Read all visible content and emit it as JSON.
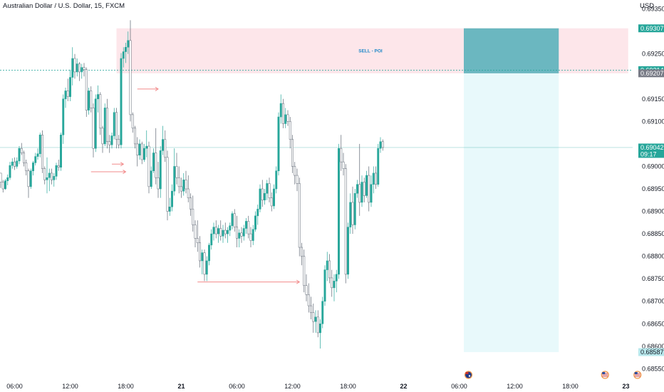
{
  "header": {
    "title": "Australian Dollar / U.S. Dollar, 15, FXCM",
    "currency": "USD"
  },
  "colors": {
    "up": "#26a69a",
    "down": "#5e6673",
    "zone_fill": "#fde6ea",
    "position_fill": "#6bb7c0",
    "target_fill": "#e8f9fb",
    "arrow": "#f28b8b",
    "current_tag": "#26a69a",
    "grey_tag": "#787b86",
    "light_tag": "#b8e8ec"
  },
  "chart_data": {
    "type": "candlestick",
    "symbol": "Australian Dollar / U.S. Dollar, 15, FXCM",
    "y_axis": {
      "range": [
        0.6853,
        0.6937
      ],
      "ticks": [
        {
          "v": 0.6935,
          "label": "0.69350"
        },
        {
          "v": 0.6925,
          "label": "0.69250"
        },
        {
          "v": 0.6915,
          "label": "0.69150"
        },
        {
          "v": 0.691,
          "label": "0.69100"
        },
        {
          "v": 0.69,
          "label": "0.69000"
        },
        {
          "v": 0.6895,
          "label": "0.68950"
        },
        {
          "v": 0.689,
          "label": "0.68900"
        },
        {
          "v": 0.6885,
          "label": "0.68850"
        },
        {
          "v": 0.688,
          "label": "0.68800"
        },
        {
          "v": 0.6875,
          "label": "0.68750"
        },
        {
          "v": 0.687,
          "label": "0.68700"
        },
        {
          "v": 0.6865,
          "label": "0.68650"
        },
        {
          "v": 0.686,
          "label": "0.68600"
        },
        {
          "v": 0.6855,
          "label": "0.68550"
        }
      ]
    },
    "x_axis": {
      "ticks": [
        {
          "bar": 6,
          "label": "06:00",
          "bold": false
        },
        {
          "bar": 30,
          "label": "12:00",
          "bold": false
        },
        {
          "bar": 54,
          "label": "18:00",
          "bold": false
        },
        {
          "bar": 78,
          "label": "21",
          "bold": true
        },
        {
          "bar": 102,
          "label": "06:00",
          "bold": false
        },
        {
          "bar": 126,
          "label": "12:00",
          "bold": false
        },
        {
          "bar": 150,
          "label": "18:00",
          "bold": false
        },
        {
          "bar": 174,
          "label": "22",
          "bold": true
        },
        {
          "bar": 198,
          "label": "06:00",
          "bold": false
        },
        {
          "bar": 222,
          "label": "12:00",
          "bold": false
        },
        {
          "bar": 246,
          "label": "18:00",
          "bold": false
        },
        {
          "bar": 270,
          "label": "23",
          "bold": true
        }
      ]
    },
    "price_tags": [
      {
        "v": 0.69307,
        "label": "0.69307",
        "style": "current_tag"
      },
      {
        "v": 0.69214,
        "label": "0.69214",
        "style": "current_tag"
      },
      {
        "v": 0.69207,
        "label": "0.69207",
        "style": "grey_tag"
      },
      {
        "v": 0.69042,
        "label": "0.69042",
        "sub": "09:17",
        "style": "current_tag"
      },
      {
        "v": 0.68587,
        "label": "0.68587",
        "style": "light_tag"
      }
    ],
    "zone": {
      "label": "SELL - POI",
      "top": 0.69307,
      "bottom": 0.69207,
      "start_bar": 50,
      "end_bar": 271
    },
    "position": {
      "top": 0.69307,
      "entry": 0.69207,
      "stop": 0.68587,
      "start_bar": 200,
      "end_bar": 241
    },
    "horizontal_lines": [
      {
        "v": 0.69214,
        "style": "dashed"
      },
      {
        "v": 0.69042,
        "style": "solid"
      }
    ],
    "arrows": [
      {
        "bar_from": 59,
        "bar_to": 68,
        "v": 0.69172
      },
      {
        "bar_from": 48,
        "bar_to": 53,
        "v": 0.69005
      },
      {
        "bar_from": 39,
        "bar_to": 54,
        "v": 0.68988
      },
      {
        "bar_from": 85,
        "bar_to": 129,
        "v": 0.68743
      }
    ],
    "events": [
      {
        "bar": 202,
        "type": "au-flag-icon"
      },
      {
        "bar": 261,
        "type": "us-flag-icon"
      },
      {
        "bar": 275,
        "type": "us-flag-icon"
      }
    ],
    "candles": [
      [
        0.68985,
        0.68985,
        0.68952,
        0.68965
      ],
      [
        0.68965,
        0.6897,
        0.68942,
        0.6895
      ],
      [
        0.6895,
        0.68972,
        0.68948,
        0.68968
      ],
      [
        0.68968,
        0.68982,
        0.68958,
        0.68975
      ],
      [
        0.68975,
        0.6901,
        0.6897,
        0.69002
      ],
      [
        0.69002,
        0.69018,
        0.68995,
        0.6901
      ],
      [
        0.6901,
        0.6902,
        0.68992,
        0.69
      ],
      [
        0.69,
        0.6902,
        0.68995,
        0.69012
      ],
      [
        0.69012,
        0.69045,
        0.69005,
        0.6904
      ],
      [
        0.6904,
        0.69052,
        0.69025,
        0.6903
      ],
      [
        0.6903,
        0.69035,
        0.69,
        0.69008
      ],
      [
        0.69008,
        0.69015,
        0.6898,
        0.6899
      ],
      [
        0.6899,
        0.68995,
        0.6893,
        0.68955
      ],
      [
        0.68955,
        0.68995,
        0.6895,
        0.6899
      ],
      [
        0.6899,
        0.69012,
        0.6898,
        0.69008
      ],
      [
        0.69008,
        0.6903,
        0.69002,
        0.69022
      ],
      [
        0.69022,
        0.6904,
        0.69015,
        0.69028
      ],
      [
        0.69028,
        0.69075,
        0.6902,
        0.6907
      ],
      [
        0.6907,
        0.6908,
        0.68985,
        0.68995
      ],
      [
        0.68995,
        0.69,
        0.6896,
        0.6897
      ],
      [
        0.6897,
        0.6902,
        0.6894,
        0.68975
      ],
      [
        0.68975,
        0.68995,
        0.68945,
        0.68985
      ],
      [
        0.68985,
        0.68995,
        0.6896,
        0.6897
      ],
      [
        0.6897,
        0.68985,
        0.68955,
        0.68978
      ],
      [
        0.68978,
        0.69008,
        0.6897,
        0.69002
      ],
      [
        0.69002,
        0.69015,
        0.6899,
        0.68998
      ],
      [
        0.68998,
        0.69075,
        0.6899,
        0.6907
      ],
      [
        0.6907,
        0.6916,
        0.6905,
        0.6915
      ],
      [
        0.6915,
        0.69175,
        0.6913,
        0.69168
      ],
      [
        0.69168,
        0.69195,
        0.69145,
        0.69155
      ],
      [
        0.69155,
        0.69215,
        0.69145,
        0.69198
      ],
      [
        0.69198,
        0.69265,
        0.6918,
        0.6924
      ],
      [
        0.6924,
        0.6925,
        0.69195,
        0.6921
      ],
      [
        0.6921,
        0.6924,
        0.692,
        0.69228
      ],
      [
        0.69228,
        0.69232,
        0.6919,
        0.6921
      ],
      [
        0.6921,
        0.69228,
        0.69195,
        0.6922
      ],
      [
        0.6922,
        0.6923,
        0.692,
        0.69215
      ],
      [
        0.69215,
        0.6922,
        0.6911,
        0.69125
      ],
      [
        0.69125,
        0.69175,
        0.69115,
        0.69168
      ],
      [
        0.69168,
        0.69178,
        0.6912,
        0.6913
      ],
      [
        0.6913,
        0.6914,
        0.6902,
        0.6904
      ],
      [
        0.6904,
        0.6916,
        0.69032,
        0.6915
      ],
      [
        0.6915,
        0.6918,
        0.6912,
        0.6916
      ],
      [
        0.6916,
        0.69165,
        0.6907,
        0.69085
      ],
      [
        0.69085,
        0.6909,
        0.6903,
        0.6905
      ],
      [
        0.6905,
        0.6914,
        0.69045,
        0.6913
      ],
      [
        0.6913,
        0.6915,
        0.6904,
        0.69055
      ],
      [
        0.69055,
        0.6907,
        0.6903,
        0.69048
      ],
      [
        0.69048,
        0.69075,
        0.6904,
        0.69068
      ],
      [
        0.69068,
        0.6913,
        0.6906,
        0.6912
      ],
      [
        0.6912,
        0.6913,
        0.6904,
        0.6906
      ],
      [
        0.6906,
        0.6907,
        0.6904,
        0.69048
      ],
      [
        0.69048,
        0.69252,
        0.6904,
        0.6924
      ],
      [
        0.6924,
        0.69265,
        0.6922,
        0.69255
      ],
      [
        0.69255,
        0.69275,
        0.6923,
        0.69265
      ],
      [
        0.69265,
        0.693,
        0.6925,
        0.6928
      ],
      [
        0.6928,
        0.69325,
        0.691,
        0.69115
      ],
      [
        0.69115,
        0.6912,
        0.69075,
        0.69085
      ],
      [
        0.69085,
        0.6909,
        0.6904,
        0.6905
      ],
      [
        0.6905,
        0.69065,
        0.69,
        0.69025
      ],
      [
        0.69025,
        0.6906,
        0.69015,
        0.6905
      ],
      [
        0.6905,
        0.69055,
        0.69005,
        0.69015
      ],
      [
        0.69015,
        0.6905,
        0.6901,
        0.6904
      ],
      [
        0.6904,
        0.6908,
        0.6902,
        0.69045
      ],
      [
        0.69045,
        0.69055,
        0.6894,
        0.68955
      ],
      [
        0.68955,
        0.69,
        0.6895,
        0.6899
      ],
      [
        0.6899,
        0.6904,
        0.68985,
        0.6903
      ],
      [
        0.6903,
        0.69085,
        0.6896,
        0.68975
      ],
      [
        0.68975,
        0.6901,
        0.6893,
        0.6895
      ],
      [
        0.6895,
        0.69045,
        0.6893,
        0.69035
      ],
      [
        0.69035,
        0.6909,
        0.69025,
        0.6906
      ],
      [
        0.6906,
        0.6908,
        0.6901,
        0.6902
      ],
      [
        0.6902,
        0.69035,
        0.6888,
        0.689
      ],
      [
        0.689,
        0.6893,
        0.6889,
        0.6891
      ],
      [
        0.6891,
        0.6896,
        0.689,
        0.68945
      ],
      [
        0.68945,
        0.6904,
        0.68935,
        0.69
      ],
      [
        0.69,
        0.6903,
        0.6896,
        0.68975
      ],
      [
        0.68975,
        0.69,
        0.6894,
        0.68955
      ],
      [
        0.68955,
        0.68975,
        0.6893,
        0.68945
      ],
      [
        0.68945,
        0.68985,
        0.68935,
        0.6897
      ],
      [
        0.6897,
        0.6899,
        0.6894,
        0.6895
      ],
      [
        0.6895,
        0.6898,
        0.6892,
        0.6893
      ],
      [
        0.6893,
        0.6894,
        0.6889,
        0.68905
      ],
      [
        0.68905,
        0.68935,
        0.68855,
        0.6887
      ],
      [
        0.6887,
        0.6888,
        0.6882,
        0.6884
      ],
      [
        0.6884,
        0.6888,
        0.6881,
        0.6883
      ],
      [
        0.6883,
        0.68845,
        0.68775,
        0.6879
      ],
      [
        0.6879,
        0.68815,
        0.6876,
        0.68808
      ],
      [
        0.68808,
        0.68815,
        0.68745,
        0.6876
      ],
      [
        0.6876,
        0.688,
        0.68745,
        0.6879
      ],
      [
        0.6879,
        0.6883,
        0.6878,
        0.68825
      ],
      [
        0.68825,
        0.6886,
        0.68815,
        0.6885
      ],
      [
        0.6885,
        0.68875,
        0.68835,
        0.68865
      ],
      [
        0.68865,
        0.6888,
        0.6884,
        0.6885
      ],
      [
        0.6885,
        0.6887,
        0.6883,
        0.68862
      ],
      [
        0.68862,
        0.6888,
        0.68835,
        0.68845
      ],
      [
        0.68845,
        0.6887,
        0.6883,
        0.68858
      ],
      [
        0.68858,
        0.68875,
        0.6884,
        0.6885
      ],
      [
        0.6885,
        0.68865,
        0.6883,
        0.68858
      ],
      [
        0.68858,
        0.68875,
        0.68845,
        0.68868
      ],
      [
        0.68868,
        0.689,
        0.6886,
        0.68895
      ],
      [
        0.68895,
        0.68905,
        0.68855,
        0.68865
      ],
      [
        0.68865,
        0.6889,
        0.6882,
        0.6884
      ],
      [
        0.6884,
        0.6886,
        0.6882,
        0.68852
      ],
      [
        0.68852,
        0.68865,
        0.6883,
        0.68845
      ],
      [
        0.68845,
        0.6887,
        0.68835,
        0.68862
      ],
      [
        0.68862,
        0.68885,
        0.6885,
        0.68878
      ],
      [
        0.68878,
        0.6889,
        0.6884,
        0.6885
      ],
      [
        0.6885,
        0.68865,
        0.6882,
        0.68835
      ],
      [
        0.68835,
        0.6887,
        0.68825,
        0.6886
      ],
      [
        0.6886,
        0.689,
        0.68855,
        0.6889
      ],
      [
        0.6889,
        0.68915,
        0.6887,
        0.68905
      ],
      [
        0.68905,
        0.6896,
        0.68898,
        0.6895
      ],
      [
        0.6895,
        0.6897,
        0.6891,
        0.68925
      ],
      [
        0.68925,
        0.6895,
        0.68915,
        0.6894
      ],
      [
        0.6894,
        0.6897,
        0.68925,
        0.68962
      ],
      [
        0.68962,
        0.68975,
        0.6892,
        0.6893
      ],
      [
        0.6893,
        0.68942,
        0.689,
        0.68912
      ],
      [
        0.68912,
        0.6896,
        0.68905,
        0.6895
      ],
      [
        0.6895,
        0.69,
        0.6894,
        0.6899
      ],
      [
        0.6899,
        0.6912,
        0.6898,
        0.6911
      ],
      [
        0.6911,
        0.6916,
        0.69095,
        0.6914
      ],
      [
        0.6914,
        0.6915,
        0.69085,
        0.69095
      ],
      [
        0.69095,
        0.6913,
        0.69085,
        0.69115
      ],
      [
        0.69115,
        0.69125,
        0.6909,
        0.691
      ],
      [
        0.691,
        0.6911,
        0.6904,
        0.6906
      ],
      [
        0.6906,
        0.6907,
        0.68985,
        0.69
      ],
      [
        0.69,
        0.6901,
        0.6896,
        0.6898
      ],
      [
        0.6898,
        0.68995,
        0.68945,
        0.68962
      ],
      [
        0.68962,
        0.68975,
        0.688,
        0.6882
      ],
      [
        0.6882,
        0.6883,
        0.6878,
        0.688
      ],
      [
        0.688,
        0.68815,
        0.6872,
        0.68735
      ],
      [
        0.68735,
        0.6876,
        0.687,
        0.68715
      ],
      [
        0.68715,
        0.6874,
        0.68675,
        0.6869
      ],
      [
        0.6869,
        0.6871,
        0.6866,
        0.68675
      ],
      [
        0.68675,
        0.68695,
        0.6863,
        0.68655
      ],
      [
        0.68655,
        0.6868,
        0.6863,
        0.68665
      ],
      [
        0.68665,
        0.6868,
        0.6862,
        0.6863
      ],
      [
        0.6863,
        0.6866,
        0.68595,
        0.6865
      ],
      [
        0.6865,
        0.6871,
        0.6864,
        0.687
      ],
      [
        0.687,
        0.6878,
        0.6869,
        0.6877
      ],
      [
        0.6877,
        0.6881,
        0.68745,
        0.6879
      ],
      [
        0.6879,
        0.68805,
        0.6874,
        0.68752
      ],
      [
        0.68752,
        0.6877,
        0.6871,
        0.6873
      ],
      [
        0.6873,
        0.6876,
        0.687,
        0.68745
      ],
      [
        0.68745,
        0.6877,
        0.6872,
        0.6876
      ],
      [
        0.6876,
        0.6905,
        0.6875,
        0.6904
      ],
      [
        0.6904,
        0.6907,
        0.6899,
        0.6901
      ],
      [
        0.6901,
        0.6903,
        0.6898,
        0.68995
      ],
      [
        0.68995,
        0.69005,
        0.6874,
        0.6876
      ],
      [
        0.6876,
        0.68875,
        0.6875,
        0.68865
      ],
      [
        0.68865,
        0.6894,
        0.6885,
        0.6892
      ],
      [
        0.6892,
        0.68955,
        0.6885,
        0.6887
      ],
      [
        0.6887,
        0.6895,
        0.6886,
        0.6894
      ],
      [
        0.6894,
        0.6897,
        0.6893,
        0.6896
      ],
      [
        0.6896,
        0.6905,
        0.6889,
        0.6892
      ],
      [
        0.6892,
        0.6898,
        0.6891,
        0.68965
      ],
      [
        0.68965,
        0.68975,
        0.6892,
        0.68935
      ],
      [
        0.68935,
        0.6899,
        0.6893,
        0.6898
      ],
      [
        0.6898,
        0.69,
        0.689,
        0.6892
      ],
      [
        0.6892,
        0.6898,
        0.6891,
        0.6896
      ],
      [
        0.6896,
        0.69,
        0.6894,
        0.68985
      ],
      [
        0.68985,
        0.69,
        0.6895,
        0.6896
      ],
      [
        0.6896,
        0.6905,
        0.68955,
        0.6904
      ],
      [
        0.6904,
        0.69065,
        0.6903,
        0.69055
      ],
      [
        0.69055,
        0.6906,
        0.69035,
        0.69042
      ]
    ]
  }
}
